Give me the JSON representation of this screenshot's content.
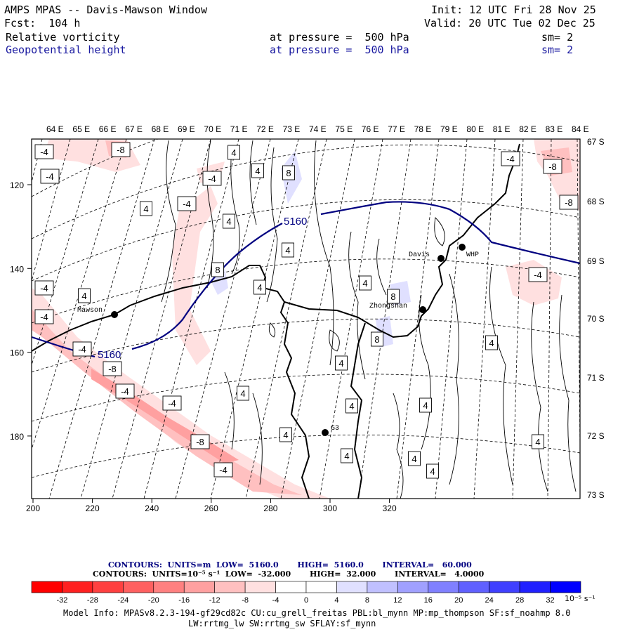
{
  "header": {
    "title": "AMPS MPAS -- Davis-Mawson Window",
    "init": "Init: 12 UTC Fri 28 Nov 25",
    "forecast": "Fcst:  104 h",
    "valid": "Valid: 20 UTC Tue 02 Dec 25"
  },
  "fields": [
    {
      "name": "Relative vorticity",
      "pressure_label": "at pressure =  500 hPa",
      "smooth": "sm= 2",
      "color": "#000000"
    },
    {
      "name": "Geopotential height",
      "pressure_label": "at pressure =  500 hPa",
      "smooth": "sm= 2",
      "color": "#1a1aa0"
    }
  ],
  "map": {
    "lon_labels": [
      "64 E",
      "65 E",
      "66 E",
      "67 E",
      "68 E",
      "69 E",
      "70 E",
      "71 E",
      "72 E",
      "73 E",
      "74 E",
      "75 E",
      "76 E",
      "77 E",
      "78 E",
      "79 E",
      "80 E",
      "81 E",
      "82 E",
      "83 E",
      "84 E"
    ],
    "lat_labels": [
      "67 S",
      "68 S",
      "69 S",
      "70 S",
      "71 S",
      "72 S",
      "73 S"
    ],
    "x_ticks": [
      "200",
      "220",
      "240",
      "260",
      "280",
      "300",
      "320"
    ],
    "y_ticks": [
      "120",
      "140",
      "160",
      "180"
    ],
    "stations": [
      "Mawson",
      "Davis",
      "WHP",
      "Zhongshan",
      "G3"
    ],
    "height_contour_label": "5160",
    "vorticity_labels": [
      "-4",
      "-8",
      "4",
      "8"
    ]
  },
  "contour_info": {
    "height": "CONTOURS:  UNITS=m  LOW=  5160.0       HIGH=  5160.0       INTERVAL=   60.000",
    "vorticity": "CONTOURS:  UNITS=10⁻⁵ s⁻¹  LOW=  -32.000       HIGH=  32.000       INTERVAL=   4.0000"
  },
  "colorbar": {
    "ticks": [
      "-32",
      "-28",
      "-24",
      "-20",
      "-16",
      "-12",
      "-8",
      "-4",
      "0",
      "4",
      "8",
      "12",
      "16",
      "20",
      "24",
      "28",
      "32"
    ],
    "units": "10⁻⁵ s⁻¹",
    "colors": [
      "#ff0000",
      "#ff2020",
      "#ff4040",
      "#ff6060",
      "#ff8080",
      "#ffa0a0",
      "#ffc0c0",
      "#ffe0e0",
      "#ffffff",
      "#ffffff",
      "#e0e0ff",
      "#c0c0ff",
      "#a0a0ff",
      "#8080ff",
      "#6060ff",
      "#4040ff",
      "#2020ff",
      "#0000ff"
    ]
  },
  "model_info": {
    "line1": "Model Info: MPASv8.2.3-194-gf29cd82c CU:cu_grell_freitas PBL:bl_mynn MP:mp_thompson SF:sf_noahmp 8.0",
    "line2": "LW:rrtmg_lw SW:rrtmg_sw SFLAY:sf_mynn"
  }
}
